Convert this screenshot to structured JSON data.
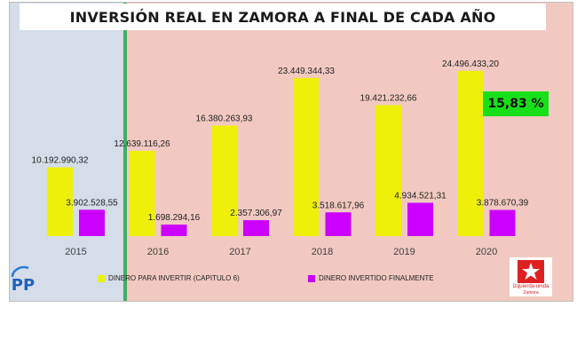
{
  "title": "INVERSIÓN REAL EN ZAMORA A FINAL DE CADA AÑO",
  "badge": "15,83 %",
  "colors": {
    "period1_background": "#d4dde8",
    "period2_background": "#f1c9c0",
    "divider": "#3cb062",
    "series_budget": "#eef00a",
    "series_invested": "#cc00ff",
    "badge": "#18e018",
    "highlight_label": "#c0392b"
  },
  "logos": {
    "left": "pp-logo",
    "right": {
      "icon": "iu-logo",
      "name": "izquierda unida",
      "sub": "Zamora"
    }
  },
  "chart_data": {
    "type": "bar",
    "categories": [
      "2015",
      "2016",
      "2017",
      "2018",
      "2019",
      "2020"
    ],
    "series": [
      {
        "name": "DINERO PARA INVERTIR (CAPITULO 6)",
        "values": [
          10192990.32,
          12639116.26,
          16380263.93,
          23449344.33,
          19421232.66,
          24496433.2
        ],
        "labels": [
          "10.192.990,32",
          "12.639.116,26",
          "16.380.263,93",
          "23.449.344,33",
          "19.421.232,66",
          "24.496.433,20"
        ]
      },
      {
        "name": "DINERO INVERTIDO FINALMENTE",
        "values": [
          3902528.55,
          1698294.16,
          2357306.97,
          3518617.96,
          4934521.31,
          3878670.39
        ],
        "labels": [
          "3.902.528,55",
          "1.698.294,16",
          "2.357.306,97",
          "3.518.617,96",
          "4.934.521,31",
          "3.878.670,39"
        ]
      }
    ],
    "highlighted_label": {
      "series": 1,
      "index": 5
    },
    "title": "INVERSIÓN REAL EN ZAMORA A FINAL DE CADA AÑO",
    "xlabel": "",
    "ylabel": "",
    "ylim": [
      0,
      25000000
    ],
    "grid": false,
    "legend": "bottom"
  }
}
